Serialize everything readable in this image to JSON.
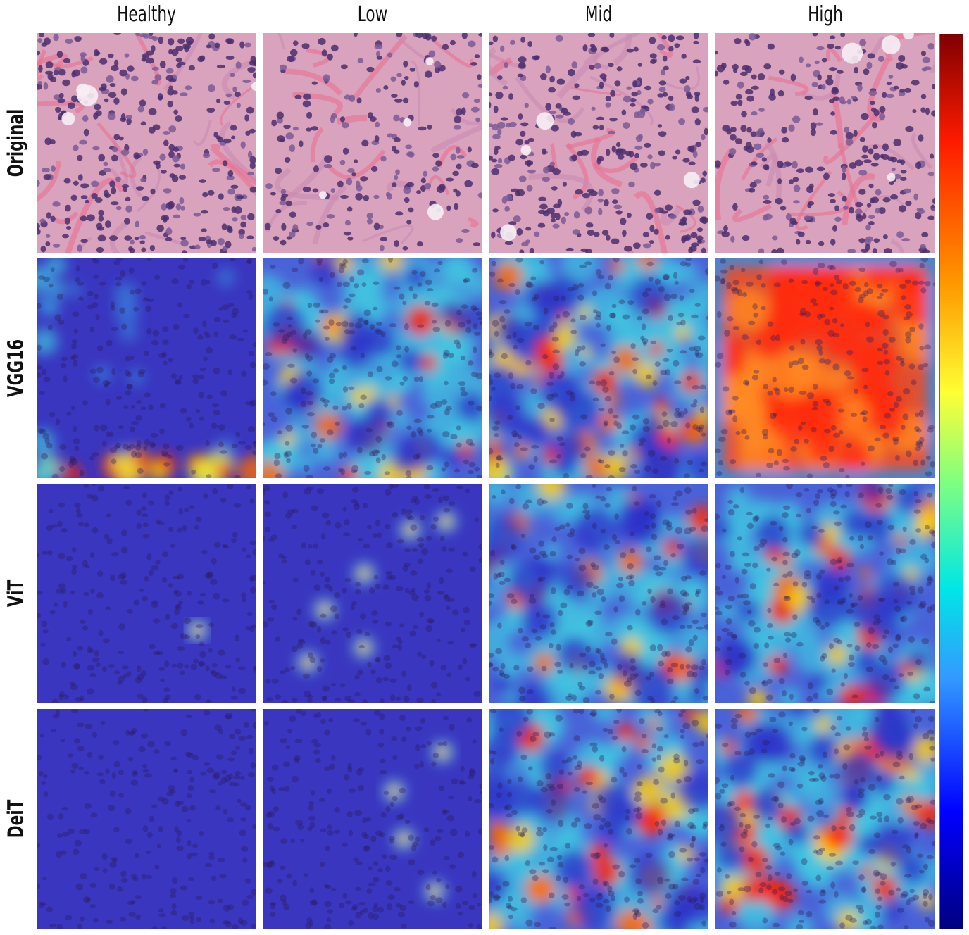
{
  "columns": [
    "Healthy",
    "Low",
    "Mid",
    "High"
  ],
  "rows": [
    "Original",
    "VGG16",
    "ViT",
    "DeiT"
  ],
  "colorbar": {
    "colormap": "jet",
    "top_color": "#800000",
    "bottom_color": "#000080"
  },
  "colors": {
    "tissue_pink": "#d99ab4",
    "nucleus_purple": "#4a3070",
    "overlay_blue": "#3b3cd0",
    "heat_red": "#e02020",
    "heat_yellow": "#f0e040"
  }
}
